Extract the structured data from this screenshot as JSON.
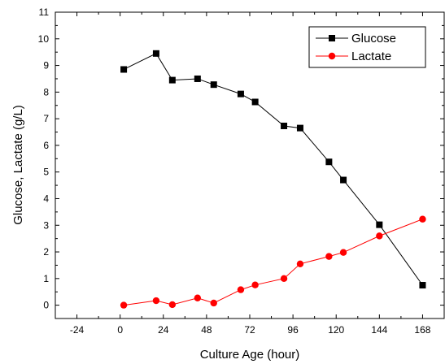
{
  "chart_data": {
    "type": "line",
    "xlabel": "Culture Age (hour)",
    "ylabel": "Glucose, Lactate (g/L)",
    "xlim": [
      -36,
      180
    ],
    "ylim": [
      -0.5,
      11
    ],
    "xticks": [
      -24,
      0,
      24,
      48,
      72,
      96,
      120,
      144,
      168
    ],
    "yticks": [
      0,
      1,
      2,
      3,
      4,
      5,
      6,
      7,
      8,
      9,
      10,
      11
    ],
    "grid": false,
    "legend_position": "top-right",
    "series": [
      {
        "name": "Glucose",
        "marker": "square",
        "line_color": "#000000",
        "marker_color": "#000000",
        "x": [
          2,
          20,
          29,
          43,
          52,
          67,
          75,
          91,
          100,
          116,
          124,
          144,
          168
        ],
        "y": [
          8.85,
          9.45,
          8.45,
          8.5,
          8.28,
          7.93,
          7.63,
          6.73,
          6.65,
          5.38,
          4.7,
          3.02,
          0.75
        ]
      },
      {
        "name": "Lactate",
        "marker": "circle",
        "line_color": "#ff0000",
        "marker_color": "#ff0000",
        "x": [
          2,
          20,
          29,
          43,
          52,
          67,
          75,
          91,
          100,
          116,
          124,
          144,
          168
        ],
        "y": [
          0.0,
          0.17,
          0.02,
          0.27,
          0.08,
          0.58,
          0.76,
          1.0,
          1.55,
          1.83,
          1.98,
          2.6,
          3.23
        ]
      }
    ]
  }
}
